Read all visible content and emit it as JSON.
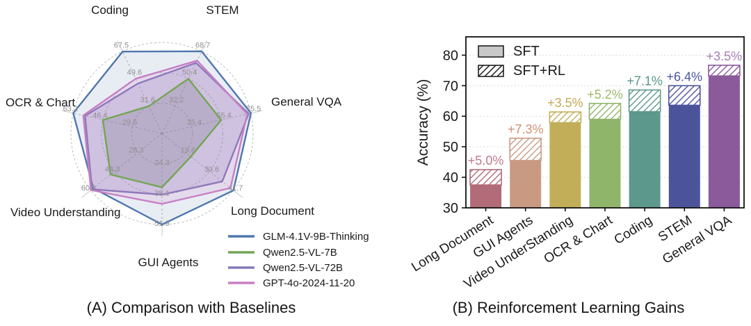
{
  "figure": {
    "caption_a": "(A) Comparison with Baselines",
    "caption_b": "(B) Reinforcement Learning Gains"
  },
  "chart_data": [
    {
      "type": "radar",
      "axes": [
        "Coding",
        "STEM",
        "General VQA",
        "Long Document",
        "GUI Agents",
        "Video Understanding",
        "OCR & Chart"
      ],
      "ring_tick_labels": {
        "Coding": [
          "31.6",
          "49.6",
          "67.5"
        ],
        "STEM": [
          "32.2",
          "50.4",
          "68.7"
        ],
        "General VQA": [
          "35.4",
          "55.4",
          "75.5"
        ],
        "Long Document": [
          "19.6",
          "30.6",
          "41.7"
        ],
        "GUI Agents": [
          "24.3",
          "38.1",
          "51.9"
        ],
        "Video Understanding": [
          "28.3",
          "44.3",
          "60.2"
        ],
        "OCR & Chart": [
          "29.6",
          "46.4",
          "63.2"
        ]
      },
      "series": [
        {
          "name": "GLM-4.1V-9B-Thinking",
          "color": "#4f76ad",
          "fill": "rgba(93,130,180,0.14)",
          "values": [
            67.5,
            68.7,
            75.5,
            41.7,
            51.9,
            58.6,
            63.2
          ]
        },
        {
          "name": "Qwen2.5-VL-7B",
          "color": "#73a554",
          "fill": "rgba(110,110,120,0.22)",
          "values": [
            31.6,
            50.4,
            55.4,
            22.0,
            35.0,
            47.0,
            46.4
          ]
        },
        {
          "name": "Qwen2.5-VL-72B",
          "color": "#8678b9",
          "fill": "rgba(134,120,185,0.25)",
          "values": [
            46.5,
            61.0,
            74.0,
            36.5,
            38.3,
            59.5,
            56.5
          ]
        },
        {
          "name": "GPT-4o-2024-11-20",
          "color": "#cut",
          "values": []
        }
      ],
      "grid": "dashed circles, 3 rings",
      "legend_position": "lower right"
    },
    {
      "type": "bar",
      "categories": [
        "Long Document",
        "GUI Agents",
        "Video UnderStanding",
        "OCR & Chart",
        "Coding",
        "STEM",
        "General VQA"
      ],
      "series": [
        {
          "name": "SFT",
          "values": [
            37.5,
            45.5,
            57.9,
            59.0,
            61.5,
            63.6,
            73.2
          ]
        },
        {
          "name": "SFT+RL",
          "values": [
            42.5,
            52.8,
            61.4,
            64.2,
            68.6,
            70.0,
            76.7
          ]
        }
      ],
      "gain_labels": [
        "+5.0%",
        "+7.3%",
        "+3.5%",
        "+5.2%",
        "+7.1%",
        "+6.4%",
        "+3.5%"
      ],
      "bar_colors": [
        "#b26b79",
        "#c99a82",
        "#c2ae58",
        "#8fb56b",
        "#5d988c",
        "#4b549b",
        "#8a5a9b"
      ],
      "gain_label_colors": [
        "#c0798a",
        "#cf9072",
        "#c3a952",
        "#9cba6a",
        "#55968a",
        "#4a55a0",
        "#a77fb8"
      ],
      "ylabel": "Accuracy (%)",
      "ylim": [
        30,
        86
      ],
      "yticks": [
        30,
        40,
        50,
        60,
        70,
        80
      ],
      "legend": [
        "SFT",
        "SFT+RL"
      ],
      "legend_sft_fill": "#c8c8c8",
      "legend_position": "upper left",
      "grid": "dashed horizontal"
    }
  ]
}
